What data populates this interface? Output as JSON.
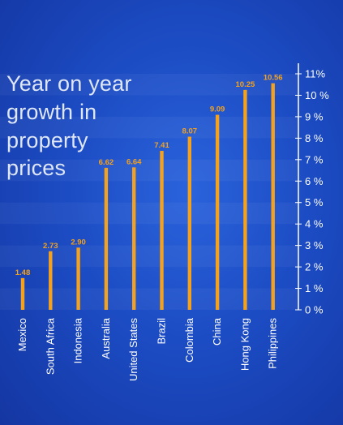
{
  "colors": {
    "background": "#1c4cc4",
    "bar": "#f4a21e",
    "axis": "#ffffff",
    "title": "#dfe7f7",
    "value_label": "#f4a21e"
  },
  "chart_data": {
    "type": "bar",
    "title": "Year on year growth in property prices",
    "categories": [
      "Mexico",
      "South Africa",
      "Indonesia",
      "Australia",
      "United States",
      "Brazil",
      "Colombia",
      "China",
      "Hong Kong",
      "Philippines"
    ],
    "values": [
      1.48,
      2.73,
      2.9,
      6.62,
      6.64,
      7.41,
      8.07,
      9.09,
      10.25,
      10.56
    ],
    "value_labels": [
      "1.48",
      "2.73",
      "2.90",
      "6.62",
      "6.64",
      "7.41",
      "8.07",
      "9.09",
      "10.25",
      "10.56"
    ],
    "yticks": [
      "0 %",
      "1 %",
      "2 %",
      "3 %",
      "4 %",
      "5 %",
      "6 %",
      "7 %",
      "8 %",
      "9 %",
      "10 %",
      "11%"
    ],
    "ylim": [
      0,
      11
    ],
    "y_axis_position": "right",
    "orientation": "vertical bars, rotated category labels",
    "legend": "none",
    "xlabel": "",
    "ylabel": ""
  }
}
